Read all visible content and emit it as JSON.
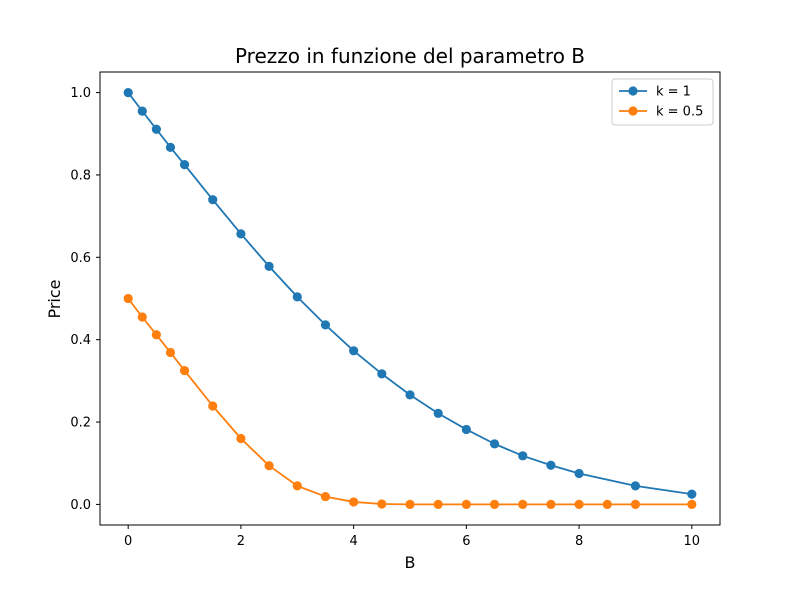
{
  "chart_data": {
    "type": "line",
    "title": "Prezzo in funzione del parametro B",
    "xlabel": "B",
    "ylabel": "Price",
    "xlim": [
      -0.5,
      10.5
    ],
    "ylim": [
      -0.05,
      1.05
    ],
    "x_ticks": [
      "0",
      "2",
      "4",
      "6",
      "8",
      "10"
    ],
    "y_ticks": [
      "0.0",
      "0.2",
      "0.4",
      "0.6",
      "0.8",
      "1.0"
    ],
    "grid": false,
    "legend_position": "top-right",
    "series": [
      {
        "name": "k = 1",
        "color": "#1f77b4",
        "marker": "circle",
        "x": [
          0,
          0.25,
          0.5,
          0.75,
          1,
          1.5,
          2,
          2.5,
          3,
          3.5,
          4,
          4.5,
          5,
          5.5,
          6,
          6.5,
          7,
          7.5,
          8,
          9,
          10
        ],
        "y": [
          1.0,
          0.955,
          0.911,
          0.867,
          0.825,
          0.74,
          0.657,
          0.578,
          0.504,
          0.436,
          0.373,
          0.317,
          0.266,
          0.221,
          0.182,
          0.147,
          0.118,
          0.095,
          0.075,
          0.045,
          0.025
        ]
      },
      {
        "name": "k = 0.5",
        "color": "#ff7f0e",
        "marker": "circle",
        "x": [
          0,
          0.25,
          0.5,
          0.75,
          1,
          1.5,
          2,
          2.5,
          3,
          3.5,
          4,
          4.5,
          5,
          5.5,
          6,
          6.5,
          7,
          7.5,
          8,
          8.5,
          9,
          10
        ],
        "y": [
          0.5,
          0.455,
          0.412,
          0.369,
          0.325,
          0.239,
          0.16,
          0.094,
          0.045,
          0.019,
          0.006,
          0.001,
          0.0,
          0.0,
          0.0,
          0.0,
          0.0,
          0.0,
          0.0,
          0.0,
          0.0,
          0.0
        ]
      }
    ]
  }
}
